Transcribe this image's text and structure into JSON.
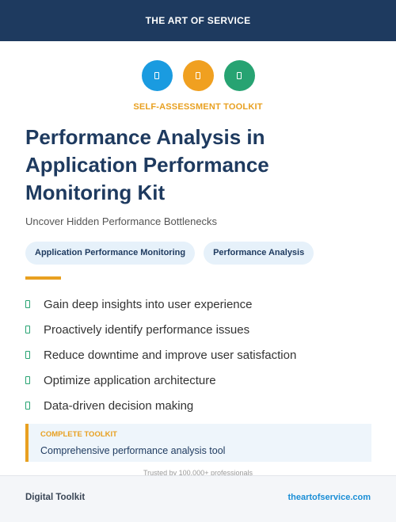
{
  "header": {
    "title": "THE ART OF SERVICE"
  },
  "icons": [
    {
      "name": "document-icon",
      "color": "#1a9be0"
    },
    {
      "name": "document-icon",
      "color": "#f0a020"
    },
    {
      "name": "document-icon",
      "color": "#27a372"
    }
  ],
  "kicker": "SELF-ASSESSMENT TOOLKIT",
  "title": "Performance Analysis in Application Performance Monitoring Kit",
  "subtitle": "Uncover Hidden Performance Bottlenecks",
  "tags": [
    "Application Performance Monitoring",
    "Performance Analysis"
  ],
  "benefits": [
    "Gain deep insights into user experience",
    "Proactively identify performance issues",
    "Reduce downtime and improve user satisfaction",
    "Optimize application architecture",
    "Data-driven decision making"
  ],
  "callout": {
    "label": "COMPLETE TOOLKIT",
    "text": "Comprehensive performance analysis tool"
  },
  "trust_text": "Trusted by 100,000+ professionals",
  "footer": {
    "left": "Digital Toolkit",
    "right": "theartofservice.com"
  },
  "colors": {
    "navy": "#1e3a5f",
    "accent": "#e8a020",
    "check": "#27a372",
    "link": "#1a8ed6"
  }
}
